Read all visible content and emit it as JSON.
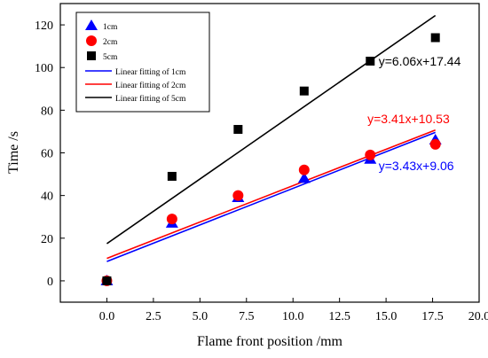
{
  "chart_data": {
    "type": "scatter",
    "xlabel": "Flame front position /mm",
    "ylabel": "Time /s",
    "xlim": [
      -2.5,
      20
    ],
    "ylim": [
      -10,
      130
    ],
    "xticks": [
      "0.0",
      "2.5",
      "5.0",
      "7.5",
      "10.0",
      "12.5",
      "15.0",
      "17.5",
      "20.0"
    ],
    "yticks": [
      "0",
      "20",
      "40",
      "60",
      "80",
      "100",
      "120"
    ],
    "grid": false,
    "legend_position": "top-left",
    "series": [
      {
        "name": "1cm",
        "marker": "triangle",
        "color": "#0000ff",
        "x": [
          0,
          3.5,
          7.05,
          10.6,
          14.15,
          17.65
        ],
        "y": [
          0,
          27,
          39,
          48,
          57,
          66
        ]
      },
      {
        "name": "2cm",
        "marker": "circle",
        "color": "#ff0000",
        "x": [
          0,
          3.5,
          7.05,
          10.6,
          14.15,
          17.65
        ],
        "y": [
          0,
          29,
          40,
          52,
          59,
          64
        ]
      },
      {
        "name": "5cm",
        "marker": "square",
        "color": "#000000",
        "x": [
          0,
          3.5,
          7.05,
          10.6,
          14.15,
          17.65
        ],
        "y": [
          0,
          49,
          71,
          89,
          103,
          114
        ]
      }
    ],
    "fits": [
      {
        "name": "Linear fitting of  1cm",
        "color": "#0000ff",
        "slope": 3.43,
        "intercept": 9.06,
        "x_range": [
          0,
          17.65
        ],
        "equation": "y=3.43x+9.06",
        "label_at": [
          14.6,
          52
        ]
      },
      {
        "name": "Linear fitting of  2cm",
        "color": "#ff0000",
        "slope": 3.41,
        "intercept": 10.53,
        "x_range": [
          0,
          17.65
        ],
        "equation": "y=3.41x+10.53",
        "label_at": [
          14.0,
          74
        ]
      },
      {
        "name": "Linear fitting of  5cm",
        "color": "#000000",
        "slope": 6.06,
        "intercept": 17.44,
        "x_range": [
          0,
          17.65
        ],
        "equation": "y=6.06x+17.44",
        "label_at": [
          14.6,
          101
        ]
      }
    ]
  }
}
